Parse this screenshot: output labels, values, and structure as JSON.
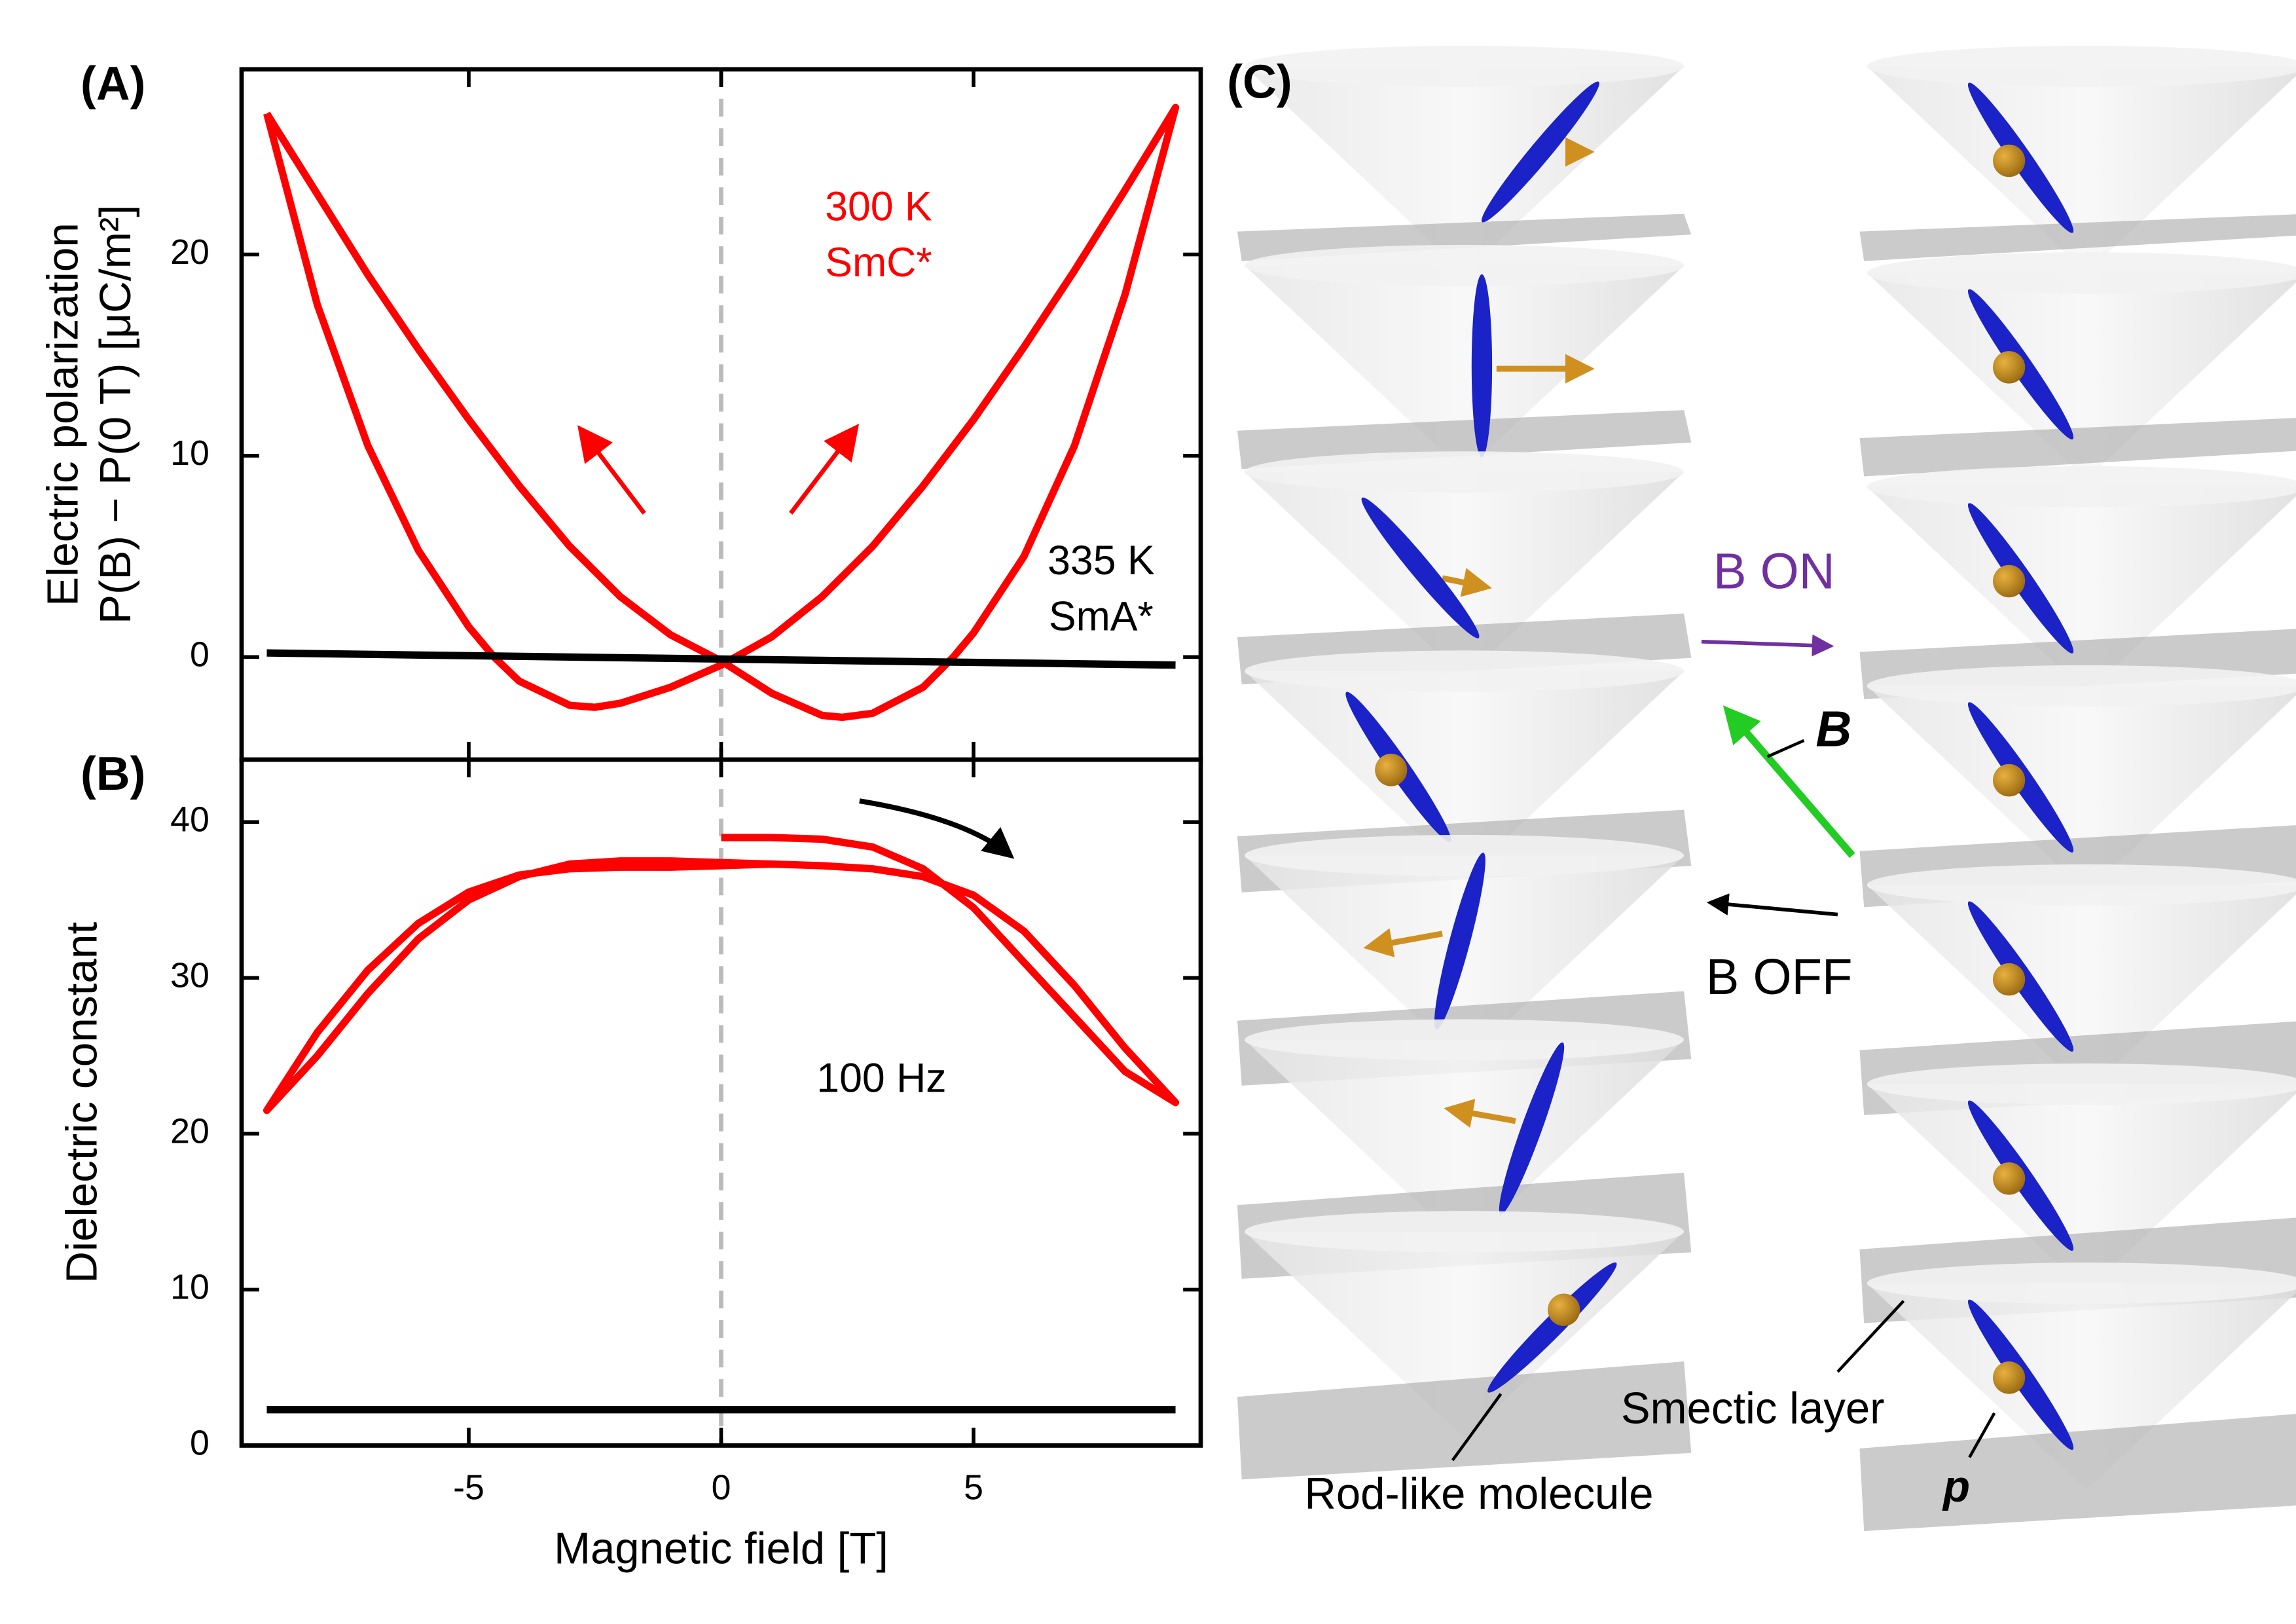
{
  "chart_data": [
    {
      "type": "line",
      "panel_label": "(A)",
      "ylabel": [
        "Electric polarization",
        "P(B) − P(0 T) [μC/m²]"
      ],
      "xlim": [
        -9.5,
        9.5
      ],
      "ylim": [
        -5.1,
        29.2
      ],
      "xticks": [
        -5,
        0,
        5
      ],
      "yticks": [
        0,
        10,
        20
      ],
      "reference_line_x": 0,
      "series": [
        {
          "color": "#ff0000",
          "x": [
            -9,
            -8,
            -7,
            -6,
            -5,
            -4,
            -3,
            -2,
            -1,
            0,
            1,
            2,
            2.4,
            3,
            4,
            4.6,
            5,
            6,
            7,
            8,
            9,
            8,
            7,
            6,
            5,
            4,
            3,
            2,
            1,
            0,
            -1,
            -2,
            -2.5,
            -3,
            -4,
            -4.5,
            -5,
            -6,
            -7,
            -8,
            -9
          ],
          "values": [
            27,
            23,
            19,
            15.3,
            11.8,
            8.5,
            5.5,
            3,
            1.1,
            -0.2,
            -1.8,
            -2.9,
            -3,
            -2.8,
            -1.5,
            0,
            1.2,
            5,
            10.5,
            18,
            27.3,
            23.2,
            19.2,
            15.4,
            11.8,
            8.5,
            5.5,
            3,
            1,
            -0.4,
            -1.5,
            -2.3,
            -2.5,
            -2.4,
            -1.2,
            0,
            1.5,
            5.3,
            10.5,
            17.5,
            27
          ]
        },
        {
          "color": "#000000",
          "x": [
            -9,
            0,
            9
          ],
          "values": [
            0.2,
            -0.1,
            -0.4
          ]
        }
      ],
      "annotations": [
        {
          "text": "300 K",
          "color": "#ff0000"
        },
        {
          "text": "SmC*",
          "color": "#ff0000"
        },
        {
          "text": "335 K",
          "color": "#000000"
        },
        {
          "text": "SmA*",
          "color": "#000000"
        }
      ]
    },
    {
      "type": "line",
      "panel_label": "(B)",
      "ylabel": [
        "Dielectric constant"
      ],
      "xlabel": "Magnetic field [T]",
      "xlim": [
        -9.5,
        9.5
      ],
      "ylim": [
        0,
        44
      ],
      "xticks": [
        -5,
        0,
        5
      ],
      "yticks": [
        0,
        10,
        20,
        30,
        40
      ],
      "reference_line_x": 0,
      "series": [
        {
          "color": "#ff0000",
          "x": [
            0,
            1,
            2,
            3,
            4,
            5,
            6,
            7,
            8,
            9,
            8,
            7,
            6,
            5,
            4,
            3,
            2,
            1,
            0,
            -1,
            -2,
            -3,
            -4,
            -5,
            -6,
            -7,
            -8,
            -9,
            -8,
            -7,
            -6,
            -5,
            -4,
            -3,
            -2,
            -1,
            0,
            1
          ],
          "values": [
            39,
            39,
            38.9,
            38.4,
            37,
            34.5,
            31,
            27.5,
            24,
            22,
            25.5,
            29.5,
            33,
            35.3,
            36.5,
            37,
            37.2,
            37.3,
            37.4,
            37.5,
            37.5,
            37.3,
            36.5,
            35,
            32.5,
            29,
            25,
            21.5,
            26.5,
            30.5,
            33.5,
            35.5,
            36.6,
            37,
            37.1,
            37.1,
            37.2,
            37.3
          ]
        },
        {
          "color": "#000000",
          "x": [
            -9,
            9
          ],
          "values": [
            2.3,
            2.3
          ]
        }
      ],
      "annotations": [
        {
          "text": "100 Hz",
          "color": "#000000"
        }
      ]
    }
  ],
  "diagram": {
    "panel_label": "(C)",
    "b_on": "B ON",
    "b": "B",
    "b_off": "B OFF",
    "rod": "Rod-like molecule",
    "layer": "Smectic layer",
    "p": "p"
  }
}
